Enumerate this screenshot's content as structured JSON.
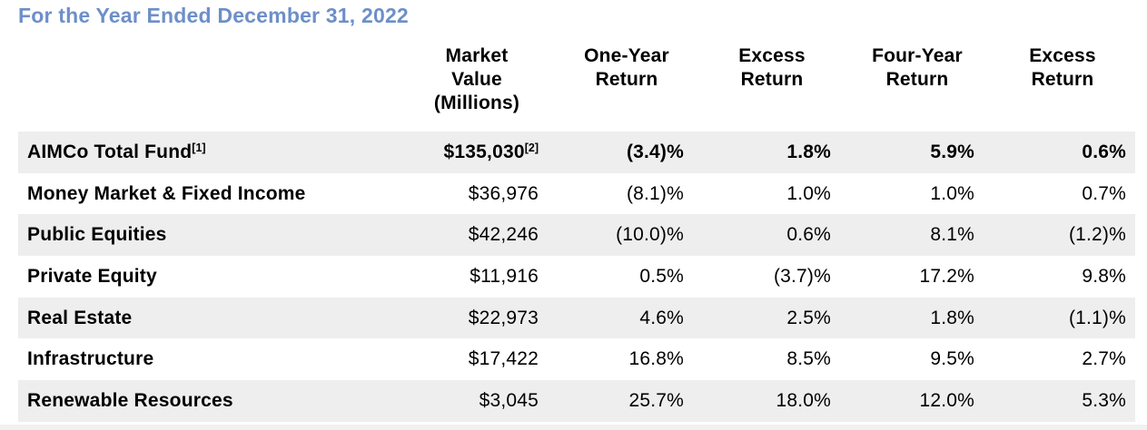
{
  "title": "For the Year Ended December 31, 2022",
  "colors": {
    "title_accent": "#6D8FC9",
    "row_stripe": "#EEEEEE",
    "text": "#000000",
    "background": "#FFFFFF"
  },
  "table": {
    "headers": {
      "market_value": "Market\nValue\n(Millions)",
      "one_year_return": "One-Year\nReturn",
      "excess_return_1": "Excess\nReturn",
      "four_year_return": "Four-Year\nReturn",
      "excess_return_2": "Excess\nReturn"
    },
    "rows": [
      {
        "label": "AIMCo Total Fund",
        "label_sup": "[1]",
        "market_value": "$135,030",
        "market_value_sup": "[2]",
        "one_year_return": "(3.4)%",
        "excess_return_1": "1.8%",
        "four_year_return": "5.9%",
        "excess_return_2": "0.6%"
      },
      {
        "label": "Money Market & Fixed Income",
        "market_value": "$36,976",
        "one_year_return": "(8.1)%",
        "excess_return_1": "1.0%",
        "four_year_return": "1.0%",
        "excess_return_2": "0.7%"
      },
      {
        "label": "Public Equities",
        "market_value": "$42,246",
        "one_year_return": "(10.0)%",
        "excess_return_1": "0.6%",
        "four_year_return": "8.1%",
        "excess_return_2": "(1.2)%"
      },
      {
        "label": "Private Equity",
        "market_value": "$11,916",
        "one_year_return": "0.5%",
        "excess_return_1": "(3.7)%",
        "four_year_return": "17.2%",
        "excess_return_2": "9.8%"
      },
      {
        "label": "Real Estate",
        "market_value": "$22,973",
        "one_year_return": "4.6%",
        "excess_return_1": "2.5%",
        "four_year_return": "1.8%",
        "excess_return_2": "(1.1)%"
      },
      {
        "label": "Infrastructure",
        "market_value": "$17,422",
        "one_year_return": "16.8%",
        "excess_return_1": "8.5%",
        "four_year_return": "9.5%",
        "excess_return_2": "2.7%"
      },
      {
        "label": "Renewable Resources",
        "market_value": "$3,045",
        "one_year_return": "25.7%",
        "excess_return_1": "18.0%",
        "four_year_return": "12.0%",
        "excess_return_2": "5.3%"
      }
    ]
  }
}
